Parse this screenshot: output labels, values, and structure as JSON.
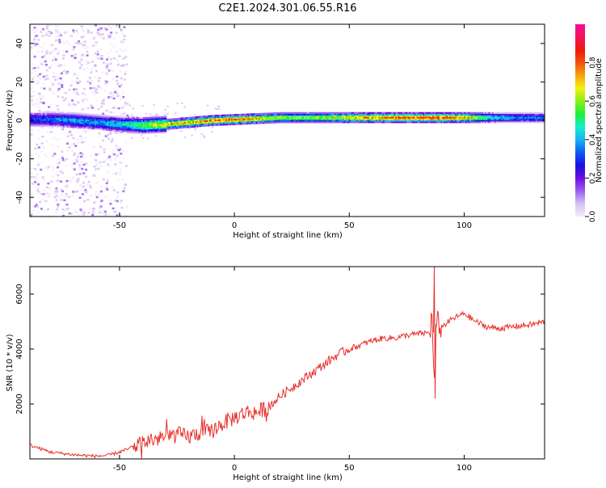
{
  "title": "C2E1.2024.301.06.55.R16",
  "colors": {
    "snr_line": "#e8302c",
    "axis": "#000000",
    "colormap": [
      "#f2ecfb",
      "#d6c2f3",
      "#9b5cf0",
      "#6a0fe0",
      "#1a10e0",
      "#0a5cf5",
      "#16b4f0",
      "#12f0c8",
      "#19f03a",
      "#8af016",
      "#f5f010",
      "#f5a40c",
      "#f0500c",
      "#f0180c",
      "#f5125a",
      "#f50c9a"
    ]
  },
  "chart_data": [
    {
      "type": "heatmap",
      "xlabel": "Height of straight line (km)",
      "ylabel": "Frequency (Hz)",
      "xlim": [
        -89,
        135
      ],
      "ylim": [
        -50,
        50
      ],
      "xticks": [
        -50,
        0,
        50,
        100
      ],
      "yticks": [
        -40,
        -20,
        0,
        20,
        40
      ],
      "colorbar": {
        "label": "Normalized spectral amplitude",
        "range": [
          0,
          1
        ],
        "ticks": [
          "0.0",
          "0.2",
          "0.4",
          "0.6",
          "0.8"
        ]
      },
      "signal_band": {
        "height_km": [
          -89,
          -80,
          -70,
          -60,
          -50,
          -40,
          -30,
          -20,
          -10,
          0,
          10,
          20,
          30,
          40,
          50,
          60,
          70,
          80,
          85,
          90,
          100,
          110,
          120,
          135
        ],
        "center_freq_hz": [
          0.5,
          0.5,
          0,
          -1,
          -2,
          -2.5,
          -2,
          -1,
          0,
          0.5,
          1,
          1.5,
          1.5,
          1.5,
          1.5,
          1.5,
          1.5,
          1.5,
          1.5,
          1.5,
          1.5,
          1.5,
          1.5,
          1.5
        ],
        "peak_amplitude": [
          0.35,
          0.4,
          0.45,
          0.45,
          0.5,
          0.65,
          0.75,
          0.8,
          0.85,
          0.9,
          0.8,
          0.7,
          0.65,
          0.7,
          0.8,
          0.85,
          0.9,
          0.9,
          0.95,
          0.9,
          0.85,
          0.55,
          0.45,
          0.4
        ]
      },
      "noise_region_km": [
        -89,
        -47
      ]
    },
    {
      "type": "line",
      "xlabel": "Height of straight line (km)",
      "ylabel": "SNR (10 * v/v)",
      "xlim": [
        -89,
        135
      ],
      "ylim": [
        0,
        7000
      ],
      "xticks": [
        -50,
        0,
        50,
        100
      ],
      "yticks": [
        2000,
        4000,
        6000
      ],
      "series": [
        {
          "x": [
            -89,
            -80,
            -70,
            -60,
            -55,
            -50,
            -45,
            -40,
            -35,
            -30,
            -25,
            -20,
            -15,
            -10,
            -5,
            0,
            5,
            10,
            15,
            20,
            25,
            30,
            35,
            40,
            45,
            50,
            55,
            60,
            65,
            70,
            75,
            80,
            85,
            86,
            87,
            88,
            90,
            95,
            100,
            105,
            110,
            115,
            120,
            125,
            130,
            135
          ],
          "y": [
            500,
            250,
            150,
            100,
            130,
            250,
            400,
            600,
            700,
            800,
            900,
            800,
            950,
            1000,
            1300,
            1500,
            1700,
            1700,
            1900,
            2300,
            2600,
            2900,
            3200,
            3500,
            3800,
            4000,
            4150,
            4300,
            4400,
            4400,
            4500,
            4550,
            4600,
            5200,
            2500,
            5000,
            4800,
            5100,
            5300,
            5000,
            4800,
            4750,
            4800,
            4850,
            4900,
            5000
          ]
        }
      ]
    }
  ]
}
